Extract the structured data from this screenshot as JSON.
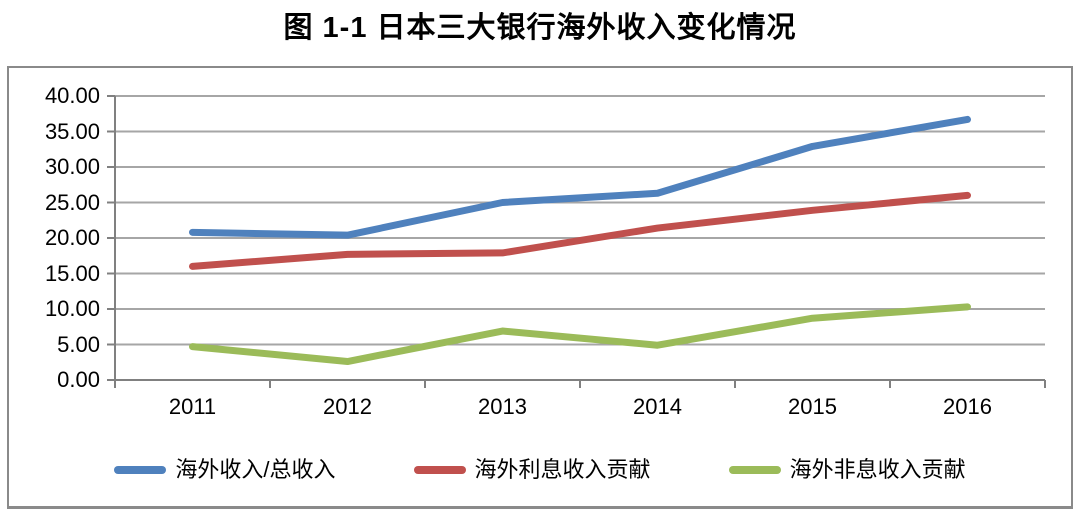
{
  "title": "图 1-1 日本三大银行海外收入变化情况",
  "colors": {
    "background": "#ffffff",
    "frame_border": "#8a8a8a",
    "gridline": "#a6a6a6",
    "axis": "#808080",
    "text": "#000000",
    "series_blue": "#4F81BD",
    "series_red": "#C0504D",
    "series_green": "#9BBB59"
  },
  "chart_data": {
    "type": "line",
    "title": "图 1-1 日本三大银行海外收入变化情况",
    "categories": [
      "2011",
      "2012",
      "2013",
      "2014",
      "2015",
      "2016"
    ],
    "series": [
      {
        "name": "海外收入/总收入",
        "slug": "overseas-income-to-total-income",
        "color": "#4F81BD",
        "values": [
          20.8,
          20.4,
          25.0,
          26.3,
          32.9,
          36.7
        ]
      },
      {
        "name": "海外利息收入贡献",
        "slug": "overseas-interest-income-contribution",
        "color": "#C0504D",
        "values": [
          16.0,
          17.7,
          17.9,
          21.4,
          23.9,
          26.0
        ]
      },
      {
        "name": "海外非息收入贡献",
        "slug": "overseas-non-interest-income-contribution",
        "color": "#9BBB59",
        "values": [
          4.7,
          2.6,
          6.9,
          4.9,
          8.7,
          10.3
        ]
      }
    ],
    "xlabel": "",
    "ylabel": "",
    "ylim": [
      0,
      40
    ],
    "ytick_step": 5,
    "ytick_labels_top_to_bottom": [
      "40.00",
      "35.00",
      "30.00",
      "25.00",
      "20.00",
      "15.00",
      "10.00",
      "5.00",
      "0.00"
    ],
    "grid": true,
    "legend_position": "bottom"
  }
}
